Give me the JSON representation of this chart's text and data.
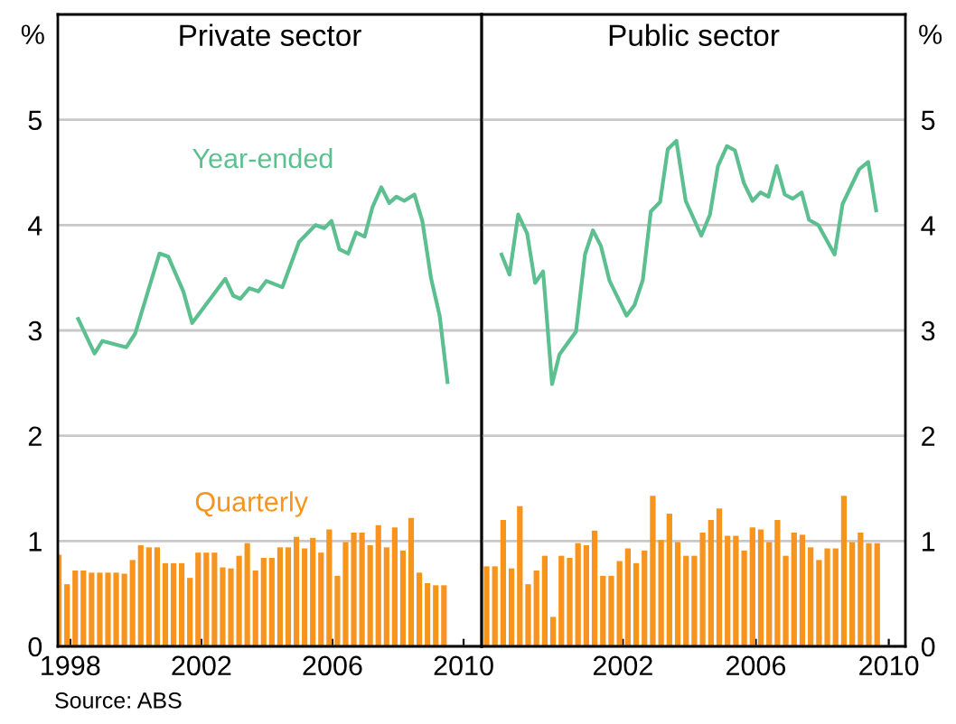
{
  "chart_data": [
    {
      "type": "bar",
      "title": "Private sector",
      "ylabel": "%",
      "xlim": [
        1997.62,
        2010.55
      ],
      "xticks": [
        1998,
        2002,
        2006,
        2010
      ],
      "ylim": [
        0,
        6
      ],
      "yticks": [
        0,
        1,
        2,
        3,
        4,
        5
      ],
      "grid": "y",
      "legend": false,
      "annotations": [
        "Source: ABS"
      ],
      "series": [
        {
          "name": "Quarterly",
          "color": "#f7941d",
          "x": [
            1997.65,
            1997.9,
            1998.15,
            1998.4,
            1998.65,
            1998.9,
            1999.15,
            1999.4,
            1999.65,
            1999.9,
            2000.15,
            2000.4,
            2000.65,
            2000.9,
            2001.15,
            2001.4,
            2001.65,
            2001.9,
            2002.15,
            2002.4,
            2002.65,
            2002.9,
            2003.15,
            2003.4,
            2003.65,
            2003.9,
            2004.15,
            2004.4,
            2004.65,
            2004.9,
            2005.15,
            2005.4,
            2005.65,
            2005.9,
            2006.15,
            2006.4,
            2006.65,
            2006.9,
            2007.15,
            2007.4,
            2007.65,
            2007.9,
            2008.15,
            2008.4,
            2008.65,
            2008.9,
            2009.15,
            2009.4
          ],
          "values": [
            0.87,
            0.59,
            0.72,
            0.72,
            0.7,
            0.7,
            0.7,
            0.7,
            0.69,
            0.82,
            0.96,
            0.94,
            0.94,
            0.79,
            0.79,
            0.79,
            0.65,
            0.89,
            0.89,
            0.89,
            0.75,
            0.74,
            0.86,
            0.98,
            0.72,
            0.84,
            0.84,
            0.94,
            0.94,
            1.04,
            0.93,
            1.03,
            0.89,
            1.11,
            0.67,
            0.99,
            1.08,
            1.08,
            0.96,
            1.15,
            0.94,
            1.13,
            0.91,
            1.22,
            0.7,
            0.6,
            0.58,
            0.58
          ]
        },
        {
          "name": "Year-ended",
          "type": "line",
          "color": "#5cbf8f",
          "x": [
            1998.24,
            1998.74,
            1998.98,
            1999.71,
            1999.98,
            2000.72,
            2000.99,
            2001.45,
            2001.72,
            2002.73,
            2002.97,
            2003.19,
            2003.46,
            2003.74,
            2003.98,
            2004.47,
            2004.98,
            2005.48,
            2005.75,
            2005.97,
            2006.21,
            2006.48,
            2006.72,
            2006.98,
            2007.22,
            2007.49,
            2007.73,
            2007.95,
            2008.19,
            2008.5,
            2008.74,
            2009.01,
            2009.27,
            2009.51
          ],
          "values": [
            3.11,
            2.78,
            2.9,
            2.84,
            2.97,
            3.73,
            3.7,
            3.37,
            3.07,
            3.49,
            3.33,
            3.3,
            3.4,
            3.37,
            3.47,
            3.41,
            3.84,
            4.0,
            3.97,
            4.04,
            3.77,
            3.73,
            3.93,
            3.89,
            4.17,
            4.36,
            4.21,
            4.27,
            4.23,
            4.29,
            4.04,
            3.49,
            3.14,
            2.51
          ]
        }
      ]
    },
    {
      "type": "bar",
      "title": "Public sector",
      "y2label": "%",
      "xlim": [
        1997.75,
        2010.5
      ],
      "xticks": [
        2002,
        2006,
        2010
      ],
      "y2lim": [
        0,
        6
      ],
      "y2ticks": [
        0,
        1,
        2,
        3,
        4,
        5
      ],
      "grid": "y",
      "legend": false,
      "series": [
        {
          "axis": "y2",
          "color": "#f7941d",
          "x": [
            1997.9,
            1998.15,
            1998.4,
            1998.65,
            1998.9,
            1999.15,
            1999.4,
            1999.65,
            1999.9,
            2000.15,
            2000.4,
            2000.65,
            2000.9,
            2001.15,
            2001.4,
            2001.65,
            2001.9,
            2002.15,
            2002.4,
            2002.65,
            2002.9,
            2003.15,
            2003.4,
            2003.65,
            2003.9,
            2004.15,
            2004.4,
            2004.65,
            2004.9,
            2005.15,
            2005.4,
            2005.65,
            2005.9,
            2006.15,
            2006.4,
            2006.65,
            2006.9,
            2007.15,
            2007.4,
            2007.65,
            2007.9,
            2008.15,
            2008.4,
            2008.65,
            2008.9,
            2009.15,
            2009.4,
            2009.65
          ],
          "values": [
            0.76,
            0.76,
            1.2,
            0.74,
            1.33,
            0.59,
            0.72,
            0.86,
            0.28,
            0.86,
            0.84,
            0.98,
            0.96,
            1.1,
            0.67,
            0.67,
            0.81,
            0.93,
            0.79,
            0.91,
            1.43,
            1.01,
            1.26,
            0.99,
            0.86,
            0.86,
            1.08,
            1.2,
            1.31,
            1.05,
            1.05,
            0.91,
            1.13,
            1.11,
            0.99,
            1.2,
            0.86,
            1.08,
            1.06,
            0.94,
            0.82,
            0.93,
            0.93,
            1.43,
            0.99,
            1.08,
            0.98,
            0.98
          ]
        },
        {
          "type": "line",
          "axis": "y2",
          "color": "#5cbf8f",
          "x": [
            1998.35,
            1998.59,
            1998.85,
            1999.12,
            1999.36,
            1999.6,
            1999.87,
            2000.09,
            2000.59,
            2000.86,
            2001.1,
            2001.34,
            2001.6,
            2002.11,
            2002.35,
            2002.6,
            2002.84,
            2003.12,
            2003.35,
            2003.61,
            2003.89,
            2004.36,
            2004.62,
            2004.86,
            2005.13,
            2005.37,
            2005.64,
            2005.9,
            2006.14,
            2006.38,
            2006.63,
            2006.87,
            2007.11,
            2007.38,
            2007.6,
            2007.88,
            2008.37,
            2008.61,
            2009.11,
            2009.38,
            2009.62
          ],
          "values": [
            3.72,
            3.53,
            4.1,
            3.92,
            3.45,
            3.56,
            2.49,
            2.77,
            2.99,
            3.72,
            3.95,
            3.8,
            3.47,
            3.14,
            3.24,
            3.48,
            4.13,
            4.22,
            4.72,
            4.8,
            4.23,
            3.9,
            4.1,
            4.56,
            4.75,
            4.71,
            4.4,
            4.23,
            4.31,
            4.27,
            4.56,
            4.29,
            4.25,
            4.31,
            4.05,
            4.0,
            3.72,
            4.2,
            4.53,
            4.6,
            4.14
          ]
        }
      ]
    }
  ]
}
